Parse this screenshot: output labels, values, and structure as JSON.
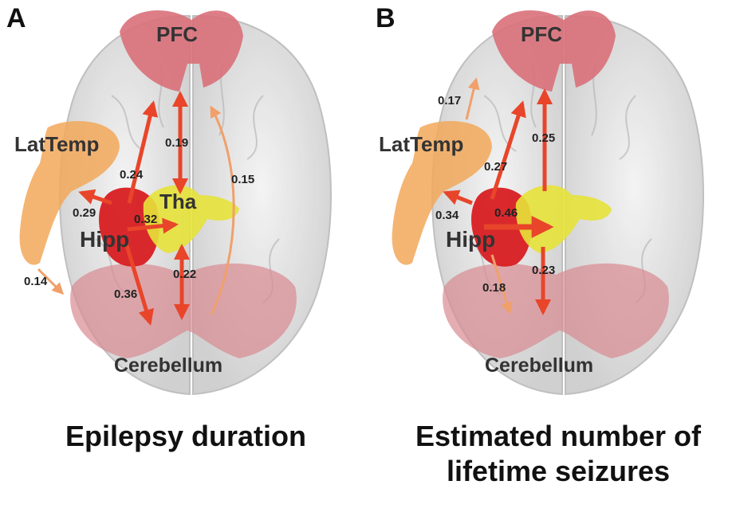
{
  "panels": [
    {
      "letter": "A",
      "caption_lines": [
        "Epilepsy duration"
      ],
      "regions": [
        "PFC",
        "LatTemp",
        "Tha",
        "Hipp",
        "Cerebellum"
      ],
      "connections": [
        {
          "from": "Hipp",
          "to": "PFC",
          "weight": "0.24"
        },
        {
          "from": "Hipp",
          "to": "LatTemp",
          "weight": "0.29"
        },
        {
          "from": "Hipp",
          "to": "Tha",
          "weight": "0.32"
        },
        {
          "from": "Hipp",
          "to": "Cerebellum",
          "weight": "0.36"
        },
        {
          "from": "Tha",
          "to": "PFC",
          "weight": "0.19"
        },
        {
          "from": "Tha",
          "to": "Cerebellum",
          "weight": "0.22"
        },
        {
          "from": "Cerebellum",
          "to": "PFC",
          "weight": "0.15"
        },
        {
          "from": "LatTemp",
          "to": "Cerebellum",
          "weight": "0.14"
        }
      ]
    },
    {
      "letter": "B",
      "caption_lines": [
        "Estimated number of",
        "lifetime seizures"
      ],
      "regions": [
        "PFC",
        "LatTemp",
        "Hipp",
        "Cerebellum"
      ],
      "connections": [
        {
          "from": "LatTemp",
          "to": "PFC",
          "weight": "0.17"
        },
        {
          "from": "Hipp",
          "to": "PFC",
          "weight": "0.27"
        },
        {
          "from": "Tha",
          "to": "PFC",
          "weight": "0.25"
        },
        {
          "from": "Hipp",
          "to": "LatTemp",
          "weight": "0.34"
        },
        {
          "from": "Hipp",
          "to": "Tha",
          "weight": "0.46"
        },
        {
          "from": "Tha",
          "to": "Cerebellum",
          "weight": "0.23"
        },
        {
          "from": "Hipp",
          "to": "Cerebellum",
          "weight": "0.18"
        }
      ]
    }
  ],
  "colors": {
    "strong_arrow": "#e8452a",
    "weak_arrow": "#f0a06a",
    "pfc": "#d9707a",
    "lattemp": "#f2a85a",
    "hipp": "#d81e22",
    "tha": "#e6e23a",
    "cerebellum": "#d88a92",
    "brain_shell": "#d8d8d8"
  }
}
